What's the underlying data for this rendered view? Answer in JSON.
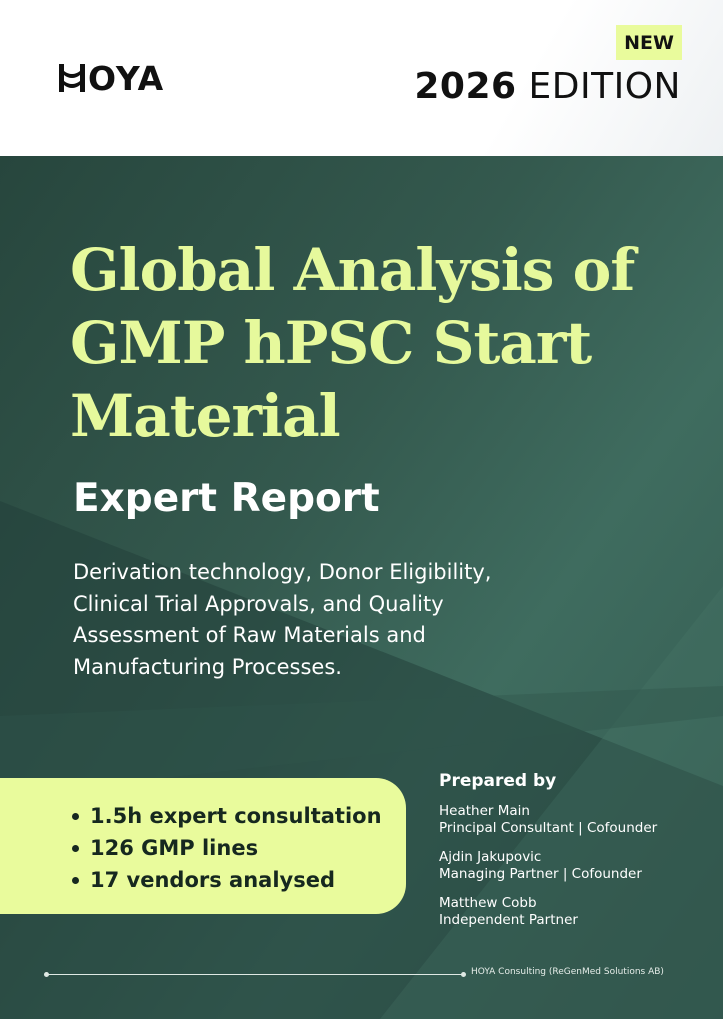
{
  "header": {
    "logo_text": "OYA",
    "badge": "NEW",
    "edition_year": "2026",
    "edition_label": "EDITION"
  },
  "cover": {
    "title_lines": [
      "Global Analysis of",
      "GMP hPSC Start",
      "Material"
    ],
    "subtitle": "Expert Report",
    "description_lines": [
      "Derivation technology, Donor Eligibility,",
      "Clinical Trial Approvals, and Quality",
      "Assessment of Raw Materials and",
      "Manufacturing Processes."
    ],
    "bullets": [
      "1.5h expert consultation",
      "126 GMP lines",
      "17 vendors analysed"
    ],
    "prepared_by": {
      "title": "Prepared by",
      "people": [
        {
          "name": "Heather Main",
          "role": "Principal Consultant | Cofounder"
        },
        {
          "name": "Ajdin Jakupovic",
          "role": "Managing Partner | Cofounder"
        },
        {
          "name": "Matthew Cobb",
          "role": "Independent Partner"
        }
      ]
    },
    "footer": "HOYA Consulting (ReGenMed Solutions AB)"
  },
  "colors": {
    "accent": "#e9fb9c",
    "background": "#34594e"
  }
}
